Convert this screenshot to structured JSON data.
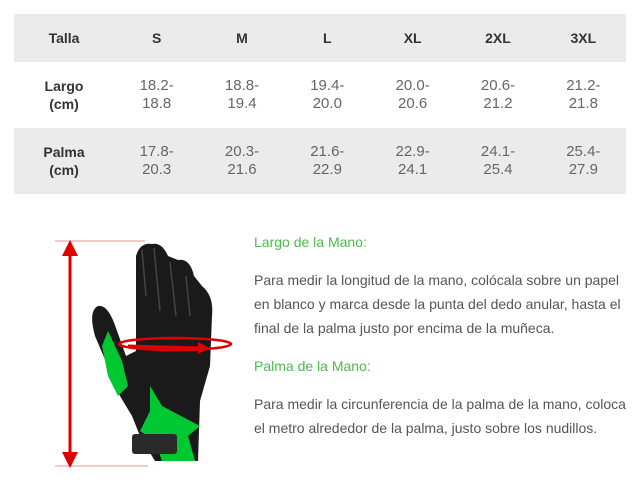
{
  "table": {
    "headers": [
      "Talla",
      "S",
      "M",
      "L",
      "XL",
      "2XL",
      "3XL"
    ],
    "rows": [
      {
        "label": [
          "Largo",
          "(cm)"
        ],
        "values": [
          [
            "18.2-",
            "18.8"
          ],
          [
            "18.8-",
            "19.4"
          ],
          [
            "19.4-",
            "20.0"
          ],
          [
            "20.0-",
            "20.6"
          ],
          [
            "20.6-",
            "21.2"
          ],
          [
            "21.2-",
            "21.8"
          ]
        ]
      },
      {
        "label": [
          "Palma",
          "(cm)"
        ],
        "values": [
          [
            "17.8-",
            "20.3"
          ],
          [
            "20.3-",
            "21.6"
          ],
          [
            "21.6-",
            "22.9"
          ],
          [
            "22.9-",
            "24.1"
          ],
          [
            "24.1-",
            "25.4"
          ],
          [
            "25.4-",
            "27.9"
          ]
        ]
      }
    ]
  },
  "guide": {
    "largo_title": "Largo de la Mano:",
    "largo_text": "Para medir la longitud de la mano, colócala sobre un papel en blanco y marca desde la punta del dedo anular, hasta el final de la palma justo por encima de la muñeca.",
    "palma_title": "Palma de la Mano:",
    "palma_text": "Para medir la circunferencia de la palma de la mano, coloca el metro alrededor de la palma, justo sobre los nudillos."
  },
  "colors": {
    "accent_green": "#4cbb4c",
    "arrow_red": "#e00000",
    "row_gray": "#ebebeb"
  }
}
